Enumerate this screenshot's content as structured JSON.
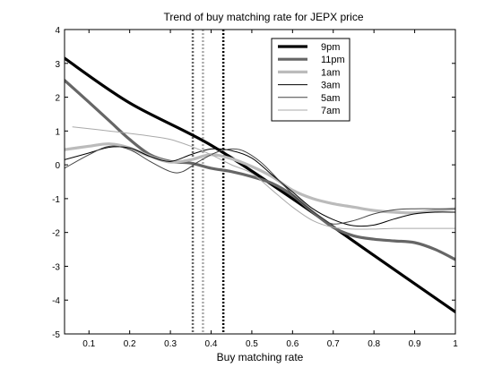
{
  "chart_data": {
    "type": "line",
    "title": "Trend of buy matching rate for JEPX price",
    "xlabel": "Buy matching rate",
    "ylabel": "",
    "xlim": [
      0.04,
      1.0
    ],
    "ylim": [
      -5,
      4
    ],
    "xticks": [
      "0.1",
      "0.2",
      "0.3",
      "0.4",
      "0.5",
      "0.6",
      "0.7",
      "0.8",
      "0.9",
      "1"
    ],
    "yticks": [
      "4",
      "3",
      "2",
      "1",
      "0",
      "-1",
      "-2",
      "-3",
      "-4",
      "-5"
    ],
    "grid": false,
    "legend_position": "top-right",
    "series": [
      {
        "name": "9pm",
        "color": "#000000",
        "width": 3.2,
        "points": [
          [
            0.04,
            3.15
          ],
          [
            0.2,
            1.83
          ],
          [
            0.4,
            0.58
          ],
          [
            0.6,
            -1.0
          ],
          [
            0.8,
            -2.68
          ],
          [
            1.0,
            -4.35
          ]
        ]
      },
      {
        "name": "11pm",
        "color": "#666666",
        "width": 3.2,
        "points": [
          [
            0.04,
            2.5
          ],
          [
            0.1,
            1.85
          ],
          [
            0.15,
            1.3
          ],
          [
            0.2,
            0.75
          ],
          [
            0.25,
            0.3
          ],
          [
            0.3,
            0.1
          ],
          [
            0.35,
            0.05
          ],
          [
            0.4,
            -0.1
          ],
          [
            0.45,
            -0.2
          ],
          [
            0.5,
            -0.35
          ],
          [
            0.55,
            -0.55
          ],
          [
            0.6,
            -0.9
          ],
          [
            0.65,
            -1.4
          ],
          [
            0.7,
            -1.85
          ],
          [
            0.75,
            -2.1
          ],
          [
            0.8,
            -2.2
          ],
          [
            0.85,
            -2.25
          ],
          [
            0.9,
            -2.3
          ],
          [
            0.95,
            -2.5
          ],
          [
            1.0,
            -2.8
          ]
        ]
      },
      {
        "name": "1am",
        "color": "#bbbbbb",
        "width": 3.2,
        "points": [
          [
            0.04,
            0.45
          ],
          [
            0.1,
            0.55
          ],
          [
            0.15,
            0.62
          ],
          [
            0.2,
            0.5
          ],
          [
            0.25,
            0.25
          ],
          [
            0.3,
            0.08
          ],
          [
            0.35,
            0.15
          ],
          [
            0.4,
            0.3
          ],
          [
            0.45,
            0.18
          ],
          [
            0.5,
            -0.05
          ],
          [
            0.55,
            -0.35
          ],
          [
            0.6,
            -0.75
          ],
          [
            0.65,
            -1.0
          ],
          [
            0.7,
            -1.15
          ],
          [
            0.75,
            -1.25
          ],
          [
            0.8,
            -1.35
          ],
          [
            0.85,
            -1.4
          ],
          [
            0.9,
            -1.42
          ],
          [
            0.95,
            -1.35
          ],
          [
            1.0,
            -1.3
          ]
        ]
      },
      {
        "name": "3am",
        "color": "#000000",
        "width": 1.0,
        "points": [
          [
            0.04,
            0.15
          ],
          [
            0.1,
            0.35
          ],
          [
            0.15,
            0.52
          ],
          [
            0.2,
            0.5
          ],
          [
            0.25,
            0.25
          ],
          [
            0.3,
            0.1
          ],
          [
            0.35,
            0.3
          ],
          [
            0.4,
            0.47
          ],
          [
            0.45,
            0.42
          ],
          [
            0.5,
            0.2
          ],
          [
            0.55,
            -0.3
          ],
          [
            0.6,
            -0.8
          ],
          [
            0.65,
            -1.3
          ],
          [
            0.7,
            -1.62
          ],
          [
            0.75,
            -1.8
          ],
          [
            0.8,
            -1.78
          ],
          [
            0.85,
            -1.6
          ],
          [
            0.9,
            -1.45
          ],
          [
            0.95,
            -1.4
          ],
          [
            1.0,
            -1.4
          ]
        ]
      },
      {
        "name": "5am",
        "color": "#444444",
        "width": 1.0,
        "points": [
          [
            0.04,
            -0.1
          ],
          [
            0.1,
            0.3
          ],
          [
            0.15,
            0.55
          ],
          [
            0.2,
            0.45
          ],
          [
            0.25,
            0.1
          ],
          [
            0.3,
            -0.2
          ],
          [
            0.33,
            -0.2
          ],
          [
            0.37,
            0.1
          ],
          [
            0.42,
            0.4
          ],
          [
            0.47,
            0.45
          ],
          [
            0.52,
            0.1
          ],
          [
            0.57,
            -0.5
          ],
          [
            0.62,
            -1.1
          ],
          [
            0.67,
            -1.55
          ],
          [
            0.7,
            -1.75
          ],
          [
            0.75,
            -1.65
          ],
          [
            0.8,
            -1.45
          ],
          [
            0.85,
            -1.33
          ],
          [
            0.9,
            -1.3
          ],
          [
            0.95,
            -1.3
          ],
          [
            1.0,
            -1.3
          ]
        ]
      },
      {
        "name": "7am",
        "color": "#aaaaaa",
        "width": 1.0,
        "points": [
          [
            0.06,
            1.12
          ],
          [
            0.15,
            1.0
          ],
          [
            0.25,
            0.85
          ],
          [
            0.3,
            0.75
          ],
          [
            0.35,
            0.55
          ],
          [
            0.4,
            0.3
          ],
          [
            0.45,
            0.0
          ],
          [
            0.5,
            -0.25
          ],
          [
            0.55,
            -0.75
          ],
          [
            0.6,
            -1.25
          ],
          [
            0.65,
            -1.65
          ],
          [
            0.7,
            -1.85
          ],
          [
            0.75,
            -1.9
          ],
          [
            0.8,
            -1.9
          ],
          [
            0.85,
            -1.88
          ],
          [
            0.9,
            -1.88
          ],
          [
            0.95,
            -1.88
          ],
          [
            1.0,
            -1.88
          ]
        ]
      }
    ],
    "vlines": [
      {
        "x": 0.355,
        "color": "#666666",
        "width": 2.5
      },
      {
        "x": 0.38,
        "color": "#aaaaaa",
        "width": 2.5
      },
      {
        "x": 0.43,
        "color": "#000000",
        "width": 2.5
      }
    ]
  }
}
